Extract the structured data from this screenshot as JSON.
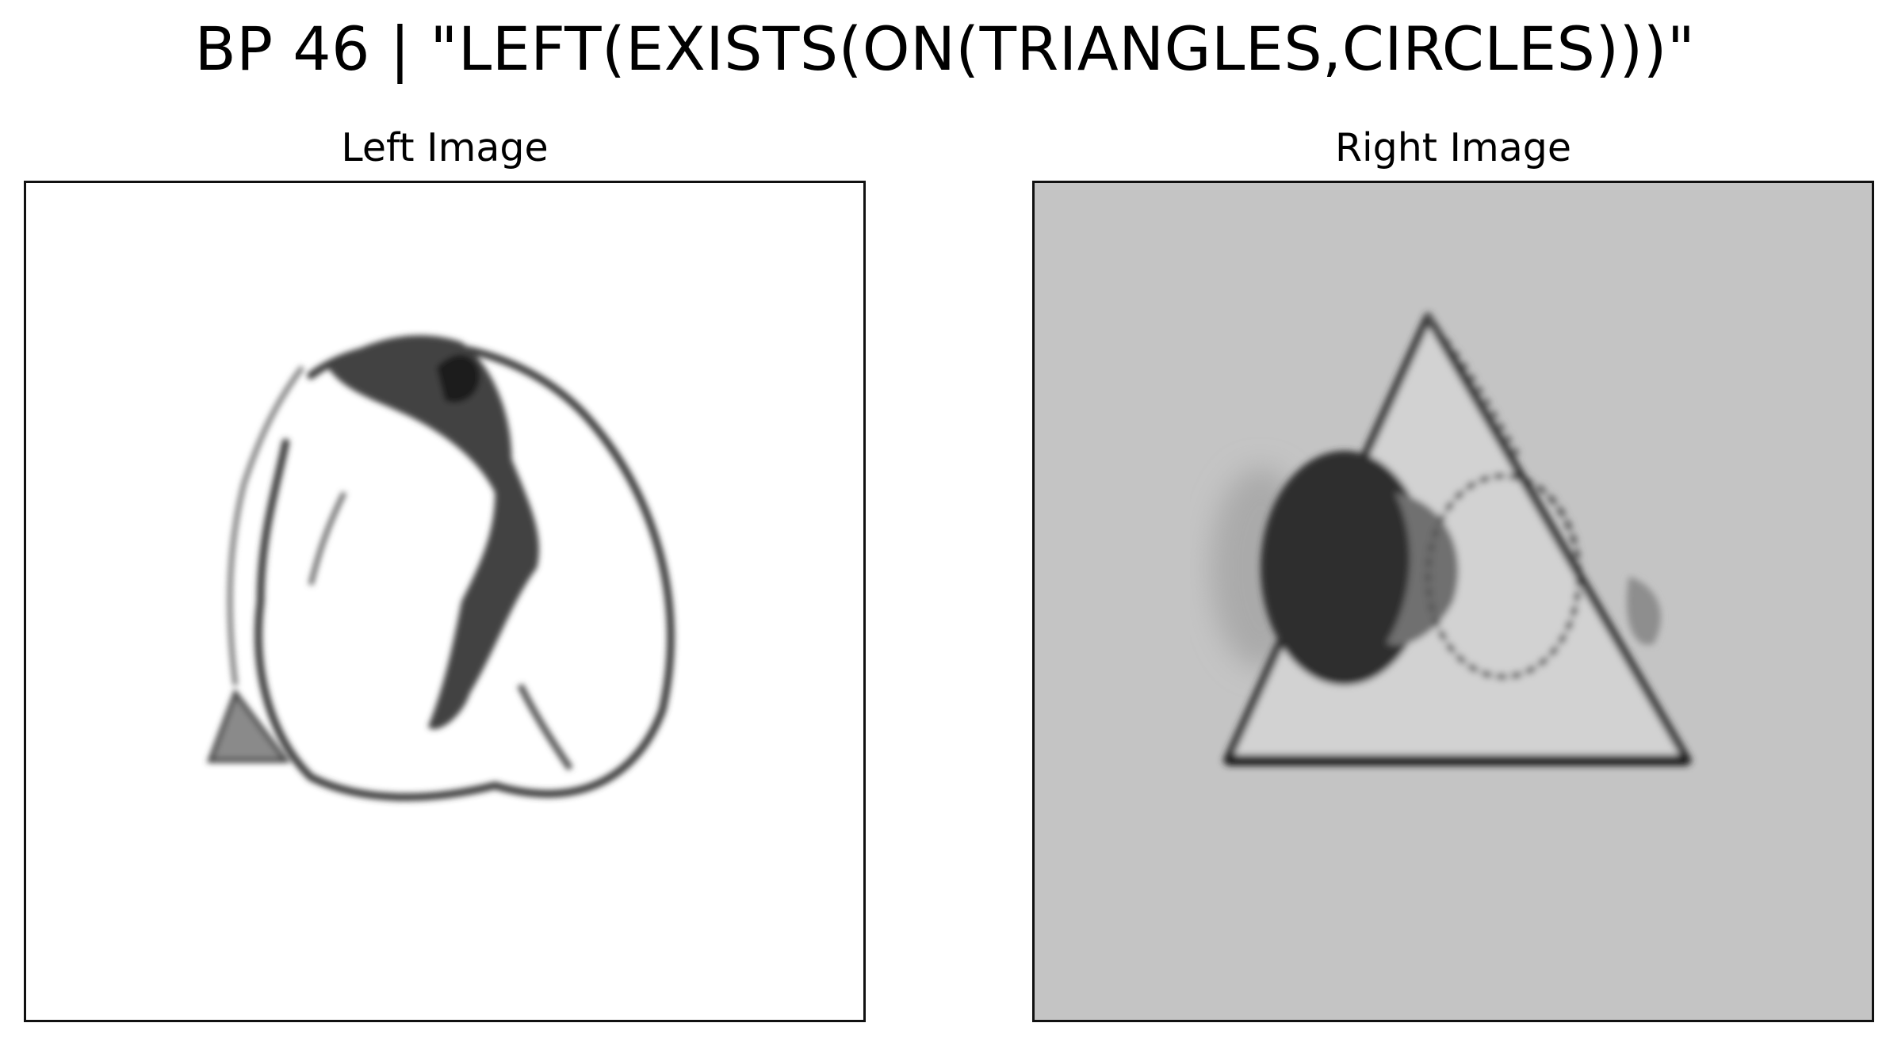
{
  "figure": {
    "title": "BP 46 | \"LEFT(EXISTS(ON(TRIANGLES,CIRCLES)))\""
  },
  "panels": {
    "left": {
      "title": "Left Image",
      "background": "#ffffff"
    },
    "right": {
      "title": "Right Image",
      "background": "#c4c4c4"
    }
  }
}
